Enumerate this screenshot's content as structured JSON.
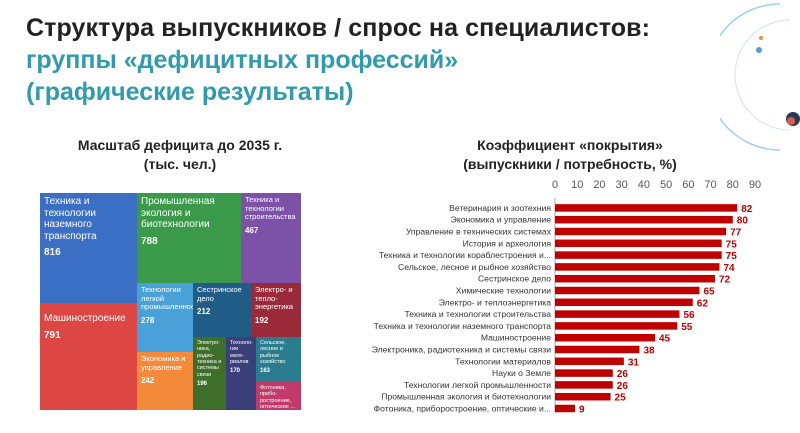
{
  "header": {
    "title_line1": "Структура выпускников / спрос на специалистов:",
    "title_line2": "группы «дефицитных профессий»",
    "title_line3": "(графические результаты)"
  },
  "treemap": {
    "title_line1": "Масштаб дефицита до 2035 г.",
    "title_line2": "(тыс. чел.)",
    "cells": [
      {
        "label": "Техника и технологии наземного транспорта",
        "value": "816",
        "color": "#3a6fc4"
      },
      {
        "label": "Промышленная экология и биотехнологии",
        "value": "788",
        "color": "#3a9a4a"
      },
      {
        "label": "Техника и технологии строительства",
        "value": "467",
        "color": "#7b52a8"
      },
      {
        "label": "Машиностроение",
        "value": "791",
        "color": "#dd4743"
      },
      {
        "label": "Технологии легкой промышленности",
        "value": "278",
        "color": "#4aa0d8"
      },
      {
        "label": "Сестринское дело",
        "value": "212",
        "color": "#1f5c86"
      },
      {
        "label": "Электро- и тепло- энергетика",
        "value": "192",
        "color": "#9a2a3a"
      },
      {
        "label": "Экономика и управление",
        "value": "242",
        "color": "#f28a3a"
      },
      {
        "label": "Электро- ника, радио- техника и системы связи",
        "value": "196",
        "color": "#3d6e2a"
      },
      {
        "label": "Техноло- гии мате- риалов",
        "value": "170",
        "color": "#3a3f7a"
      },
      {
        "label": "Сельское, лесное и рыбное хозяйство",
        "value": "163",
        "color": "#2a7d8f"
      },
      {
        "label": "Фотоника, прибо- ростроение, оптические ...",
        "value": "",
        "color": "#c03a6a"
      }
    ]
  },
  "chart_data": {
    "type": "bar",
    "orientation": "horizontal",
    "title": "Коэффициент «покрытия» (выпускники / потребность, %)",
    "categories": [
      "Ветеринария и зоотехния",
      "Экономика и управление",
      "Управление в технических системах",
      "История и археология",
      "Техника и технологии кораблестроения и...",
      "Сельское, лесное и рыбное хозяйство",
      "Сестринское дело",
      "Химические технологии",
      "Электро- и теплоэнергетика",
      "Техника и технологии строительства",
      "Техника и технологии наземного транспорта",
      "Машиностроение",
      "Электроника, радиотехника и системы связи",
      "Технологии материалов",
      "Науки о Земле",
      "Технологии легкой промышленности",
      "Промышленная экология и биотехнологии",
      "Фотоника, приборостроение, оптические и..."
    ],
    "values": [
      82,
      80,
      77,
      75,
      75,
      74,
      72,
      65,
      62,
      56,
      55,
      45,
      38,
      31,
      26,
      26,
      25,
      9
    ],
    "xlim": [
      0,
      90
    ],
    "ticks": [
      "0",
      "10",
      "20",
      "30",
      "40",
      "50",
      "60",
      "70",
      "80",
      "90"
    ],
    "bar_color": "#c00000",
    "label_color": "#c00000"
  }
}
